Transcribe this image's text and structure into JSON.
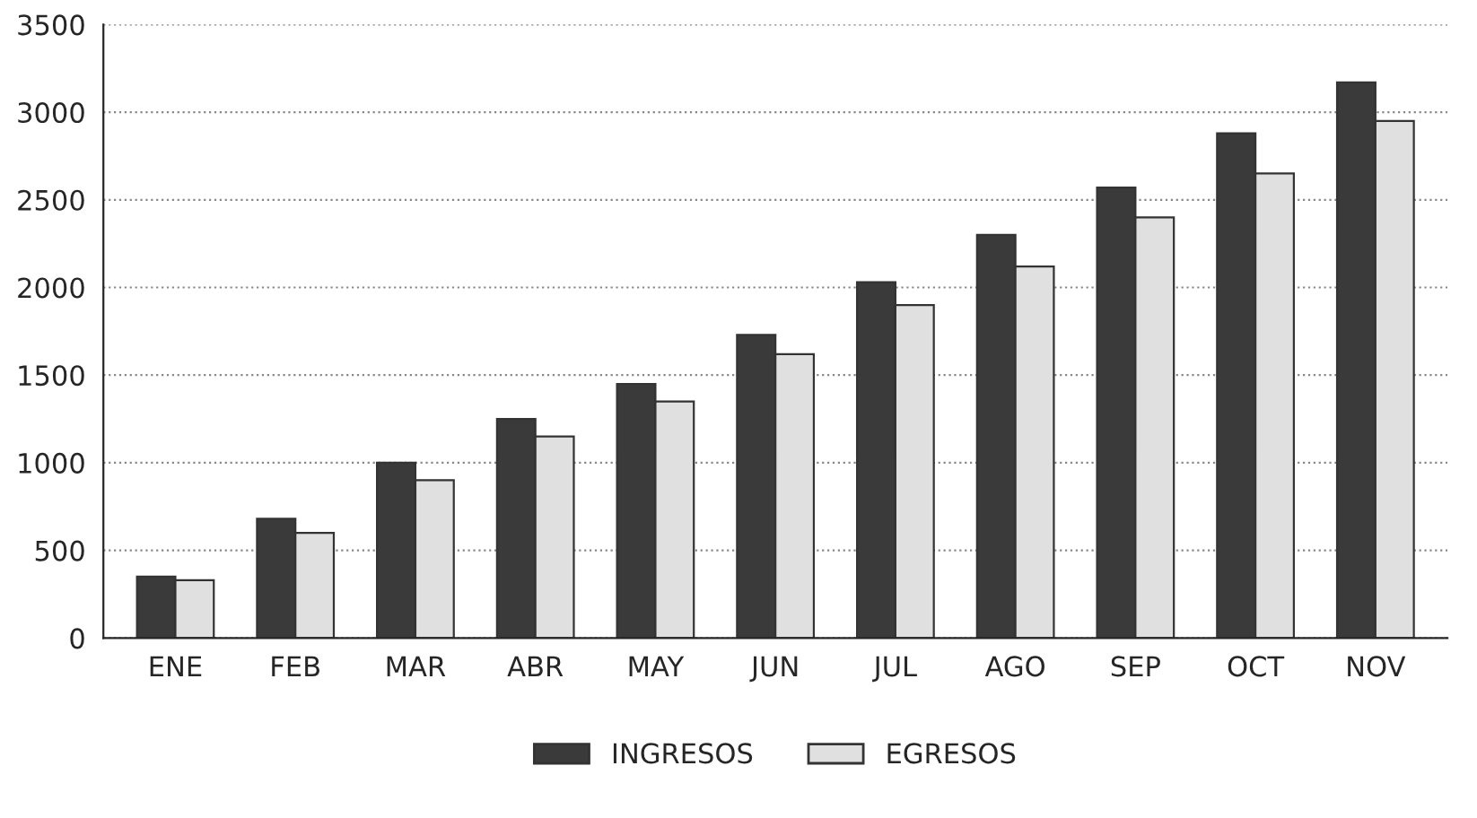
{
  "chart_data": {
    "type": "bar",
    "categories": [
      "ENE",
      "FEB",
      "MAR",
      "ABR",
      "MAY",
      "JUN",
      "JUL",
      "AGO",
      "SEP",
      "OCT",
      "NOV"
    ],
    "series": [
      {
        "name": "INGRESOS",
        "color": "#3a3a3a",
        "values": [
          350,
          680,
          1000,
          1250,
          1450,
          1730,
          2030,
          2300,
          2570,
          2880,
          3170
        ]
      },
      {
        "name": "EGRESOS",
        "color": "#e0e0e0",
        "values": [
          330,
          600,
          900,
          1150,
          1350,
          1620,
          1900,
          2120,
          2400,
          2650,
          2950
        ]
      }
    ],
    "ylim": [
      0,
      3500
    ],
    "yticks": [
      0,
      500,
      1000,
      1500,
      2000,
      2500,
      3000,
      3500
    ],
    "grid": "y",
    "legend": "bottom"
  }
}
